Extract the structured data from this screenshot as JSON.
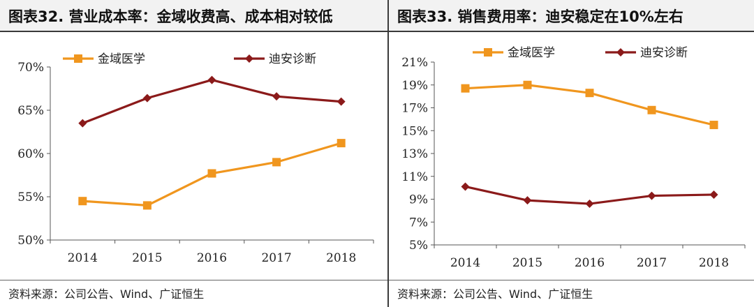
{
  "left": {
    "title": "图表32. 营业成本率：金域收费高、成本相对较低",
    "source": "资料来源：公司公告、Wind、广证恒生"
  },
  "right": {
    "title": "图表33. 销售费用率：迪安稳定在10%左右",
    "source": "资料来源：公司公告、Wind、广证恒生"
  },
  "colors": {
    "series_a": "#F0961E",
    "series_b": "#8B1A1A",
    "axis": "#555555"
  },
  "chart_data": [
    {
      "type": "line",
      "categories": [
        "2014",
        "2015",
        "2016",
        "2017",
        "2018"
      ],
      "ylim": [
        0.5,
        0.7
      ],
      "yticks": [
        "50%",
        "55%",
        "60%",
        "65%",
        "70%"
      ],
      "legend": "top",
      "grid": false,
      "series": [
        {
          "name": "金域医学",
          "values": [
            0.545,
            0.54,
            0.577,
            0.59,
            0.612
          ]
        },
        {
          "name": "迪安诊断",
          "values": [
            0.635,
            0.664,
            0.685,
            0.666,
            0.66
          ]
        }
      ]
    },
    {
      "type": "line",
      "categories": [
        "2014",
        "2015",
        "2016",
        "2017",
        "2018"
      ],
      "ylim": [
        0.05,
        0.21
      ],
      "yticks": [
        "5%",
        "7%",
        "9%",
        "11%",
        "13%",
        "15%",
        "17%",
        "19%",
        "21%"
      ],
      "legend": "top",
      "grid": false,
      "series": [
        {
          "name": "金域医学",
          "values": [
            0.187,
            0.19,
            0.183,
            0.168,
            0.155
          ]
        },
        {
          "name": "迪安诊断",
          "values": [
            0.101,
            0.089,
            0.086,
            0.093,
            0.094
          ]
        }
      ]
    }
  ]
}
